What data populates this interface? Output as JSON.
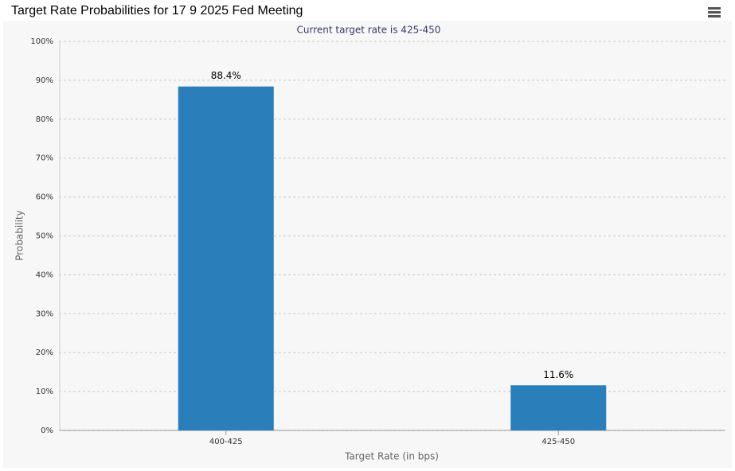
{
  "chart_data": {
    "type": "bar",
    "title": "Target Rate Probabilities for 17 9 2025 Fed Meeting",
    "subtitle": "Current target rate is 425-450",
    "x_label": "Target Rate (in bps)",
    "y_label": "Probability",
    "categories": [
      "400-425",
      "425-450"
    ],
    "values": [
      88.4,
      11.6
    ],
    "value_labels": [
      "88.4%",
      "11.6%"
    ],
    "color": "#2a7fba",
    "ylim": [
      0,
      100
    ],
    "yticks": [
      {
        "value": 0,
        "label": "0%"
      },
      {
        "value": 10,
        "label": "10%"
      },
      {
        "value": 20,
        "label": "20%"
      },
      {
        "value": 30,
        "label": "30%"
      },
      {
        "value": 40,
        "label": "40%"
      },
      {
        "value": 50,
        "label": "50%"
      },
      {
        "value": 60,
        "label": "60%"
      },
      {
        "value": 70,
        "label": "70%"
      },
      {
        "value": 80,
        "label": "80%"
      },
      {
        "value": 90,
        "label": "90%"
      },
      {
        "value": 100,
        "label": "100%"
      }
    ],
    "grid": true
  }
}
